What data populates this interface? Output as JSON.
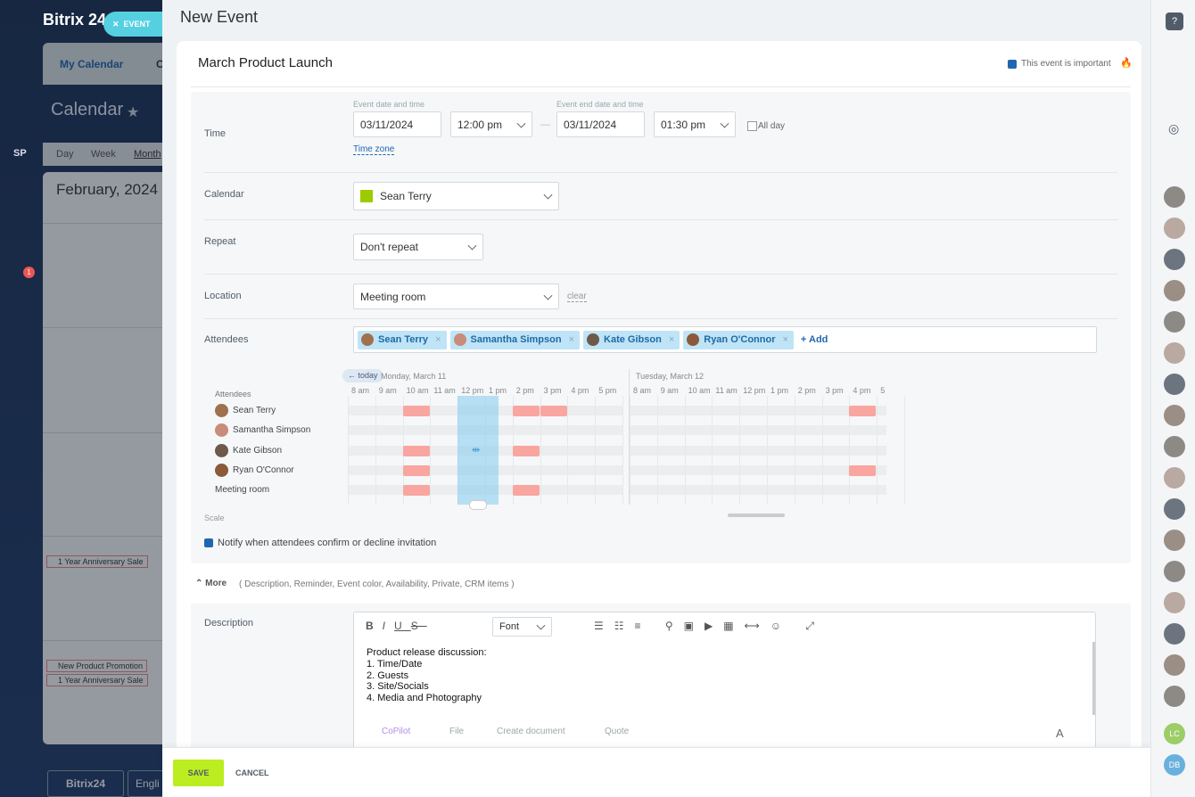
{
  "sidebar": {
    "logo": "Bitrix 24",
    "event_button": "EVENT",
    "tabs": [
      "My Calendar",
      "C"
    ],
    "heading": "Calendar",
    "badge": "1",
    "sp": "SP",
    "views": [
      "Day",
      "Week",
      "Month"
    ],
    "month": "February, 2024",
    "events": [
      "1 Year Anniversary Sale",
      "New Product Promotion",
      "1 Year Anniversary Sale"
    ],
    "footer": [
      "Bitrix24",
      "Engli"
    ]
  },
  "form": {
    "header": "New Event",
    "event_name": "March Product Launch",
    "important": "This event is important",
    "time": {
      "label": "Time",
      "start_caption": "Event date and time",
      "start_date": "03/11/2024",
      "start_time": "12:00 pm",
      "end_caption": "Event end date and time",
      "end_date": "03/11/2024",
      "end_time": "01:30 pm",
      "all_day": "All day",
      "time_zone": "Time zone"
    },
    "calendar": {
      "label": "Calendar",
      "value": "Sean Terry"
    },
    "repeat": {
      "label": "Repeat",
      "value": "Don't repeat"
    },
    "location": {
      "label": "Location",
      "value": "Meeting room",
      "clear": "clear"
    },
    "attendees": {
      "label": "Attendees",
      "chips": [
        "Sean Terry",
        "Samantha Simpson",
        "Kate Gibson",
        "Ryan O'Connor"
      ],
      "add": "+ Add"
    },
    "scheduler": {
      "today": "today",
      "days": [
        "Monday, March 11",
        "Tuesday, March 12"
      ],
      "hours": [
        "8 am",
        "9 am",
        "10 am",
        "11 am",
        "12 pm",
        "1 pm",
        "2 pm",
        "3 pm",
        "4 pm",
        "5 pm"
      ],
      "rows_label": "Attendees",
      "rows": [
        "Sean Terry",
        "Samantha Simpson",
        "Kate Gibson",
        "Ryan O'Connor",
        "Meeting room"
      ],
      "scale": "Scale"
    },
    "notify": "Notify when attendees confirm or decline invitation",
    "more": {
      "label": "More",
      "items": "( Description, Reminder, Event color, Availability, Private, CRM items )"
    },
    "description": {
      "label": "Description",
      "font": "Font",
      "lines": [
        "Product release discussion:",
        "1. Time/Date",
        "2. Guests",
        "3. Site/Socials",
        "4. Media and Photography"
      ],
      "tools": [
        "CoPilot",
        "File",
        "Create document",
        "Quote"
      ],
      "font_button": "A"
    }
  },
  "footer": {
    "save": "SAVE",
    "cancel": "CANCEL"
  },
  "right_bar": {
    "avatars": [
      "LC",
      "DB"
    ]
  }
}
